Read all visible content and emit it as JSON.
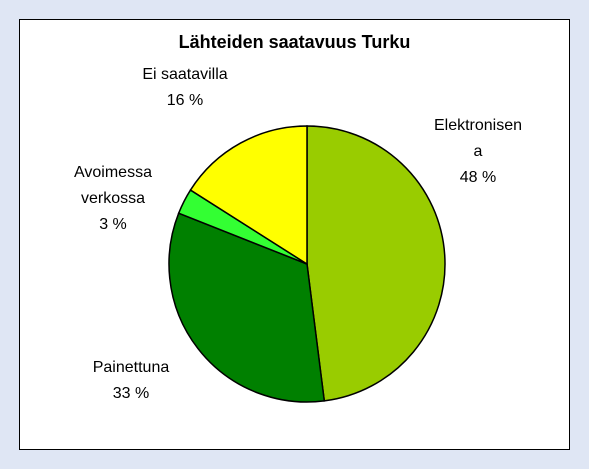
{
  "chart_data": {
    "type": "pie",
    "title": "Lähteiden saatavuus Turku",
    "categories": [
      "Elektronisena",
      "Painettuna",
      "Avoimessa verkossa",
      "Ei saatavilla"
    ],
    "values": [
      48,
      33,
      3,
      16
    ],
    "value_labels": [
      "48 %",
      "33 %",
      "3 %",
      "16 %"
    ],
    "colors": [
      "#99cc00",
      "#008000",
      "#33ff33",
      "#ffff00"
    ]
  }
}
